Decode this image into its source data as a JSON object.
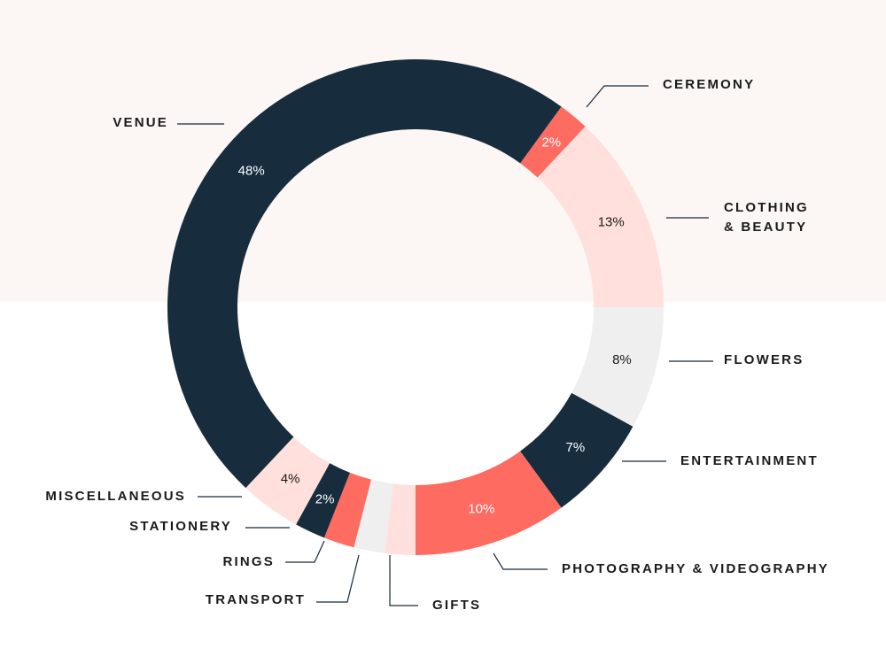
{
  "chart_data": {
    "type": "pie",
    "donut": true,
    "title": "",
    "legend": "none",
    "grid": false,
    "categories": [
      "CEREMONY",
      "CLOTHING & BEAUTY",
      "FLOWERS",
      "ENTERTAINMENT",
      "PHOTOGRAPHY & VIDEOGRAPHY",
      "GIFTS",
      "TRANSPORT",
      "RINGS",
      "STATIONERY",
      "MISCELLANEOUS",
      "VENUE"
    ],
    "label_lines": [
      [
        "CEREMONY"
      ],
      [
        "CLOTHING",
        "& BEAUTY"
      ],
      [
        "FLOWERS"
      ],
      [
        "ENTERTAINMENT"
      ],
      [
        "PHOTOGRAPHY & VIDEOGRAPHY"
      ],
      [
        "GIFTS"
      ],
      [
        "TRANSPORT"
      ],
      [
        "RINGS"
      ],
      [
        "STATIONERY"
      ],
      [
        "MISCELLANEOUS"
      ],
      [
        "VENUE"
      ]
    ],
    "values": [
      2,
      13,
      8,
      7,
      10,
      2,
      2,
      2,
      2,
      4,
      48
    ],
    "value_labels": [
      "2%",
      "13%",
      "8%",
      "7%",
      "10%",
      "",
      "",
      "",
      "2%",
      "4%",
      "48%"
    ],
    "colors": [
      "#fd6b61",
      "#ffe0dc",
      "#efefef",
      "#172c3c",
      "#fd6b61",
      "#ffe0dc",
      "#efefef",
      "#fd6b61",
      "#172c3c",
      "#ffe0dc",
      "#172c3c"
    ],
    "value_label_colors": [
      "#ffffff",
      "#1a1a1a",
      "#1a1a1a",
      "#ffffff",
      "#ffffff",
      "",
      "",
      "",
      "#ffffff",
      "#1a1a1a",
      "#ffffff"
    ]
  },
  "theme": {
    "band_color": "#fcf6f4"
  }
}
